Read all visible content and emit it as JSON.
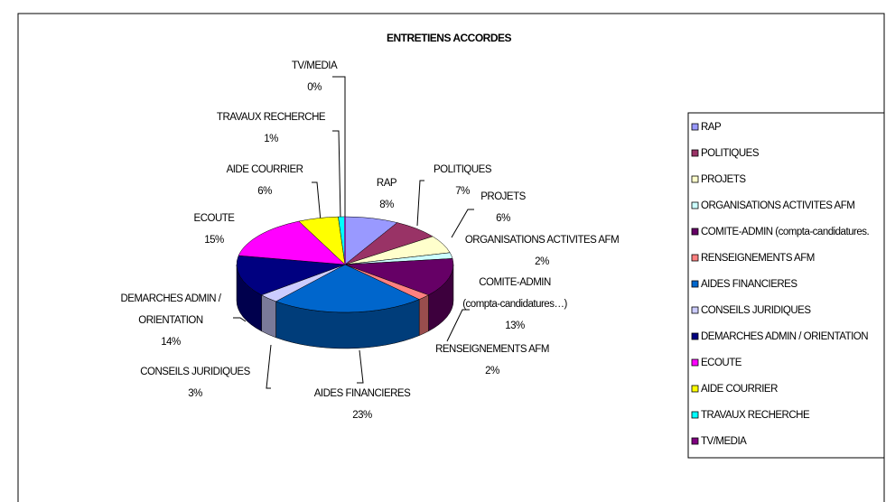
{
  "chart_data": {
    "type": "pie",
    "title": "ENTRETIENS ACCORDES",
    "categories": [
      "RAP",
      "POLITIQUES",
      "PROJETS",
      "ORGANISATIONS ACTIVITES AFM",
      "COMITE-ADMIN (compta-candidatures…)",
      "RENSEIGNEMENTS AFM",
      "AIDES FINANCIERES",
      "CONSEILS JURIDIQUES",
      "DEMARCHES ADMIN / ORIENTATION",
      "ECOUTE",
      "AIDE COURRIER",
      "TRAVAUX RECHERCHE",
      "TV/MEDIA"
    ],
    "values": [
      8,
      7,
      6,
      2,
      13,
      2,
      23,
      3,
      14,
      15,
      6,
      1,
      0
    ],
    "value_labels": [
      "8%",
      "7%",
      "6%",
      "2%",
      "13%",
      "2%",
      "23%",
      "3%",
      "14%",
      "15%",
      "6%",
      "1%",
      "0%"
    ],
    "legend_labels": [
      "RAP",
      "POLITIQUES",
      "PROJETS",
      "ORGANISATIONS ACTIVITES AFM",
      "COMITE-ADMIN (compta-candidatures.",
      "RENSEIGNEMENTS AFM",
      "AIDES FINANCIERES",
      "CONSEILS JURIDIQUES",
      "DEMARCHES ADMIN / ORIENTATION",
      "ECOUTE",
      "AIDE COURRIER",
      "TRAVAUX RECHERCHE",
      "TV/MEDIA"
    ],
    "colors": [
      "#9999ff",
      "#993366",
      "#ffffcc",
      "#ccffff",
      "#660066",
      "#ff8080",
      "#0066cc",
      "#ccccff",
      "#000080",
      "#ff00ff",
      "#ffff00",
      "#00ffff",
      "#800080"
    ],
    "legend": "right"
  }
}
